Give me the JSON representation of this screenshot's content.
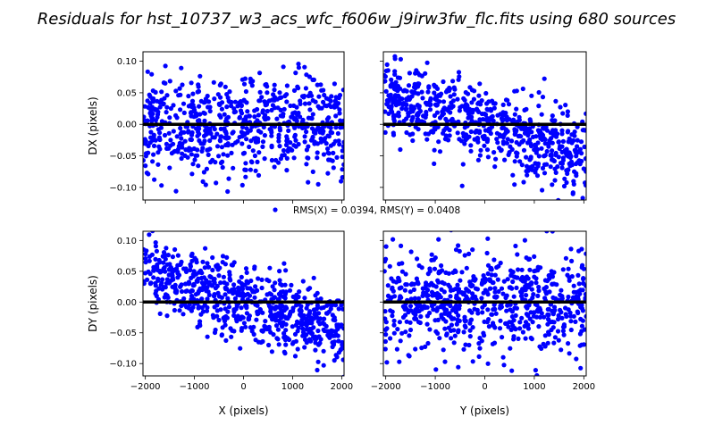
{
  "chart_data": {
    "type": "scatter",
    "title": "Residuals for hst_10737_w3_acs_wfc_f606w_j9irw3fw_flc.fits using 680 sources",
    "legend": {
      "label": "RMS(X) = 0.0394, RMS(Y) = 0.0408",
      "placement": "center"
    },
    "marker_color": "#0000ff",
    "zero_line_color": "#000000",
    "grid": false,
    "n_points_per_panel": 680,
    "xlim": [
      -2048,
      2048
    ],
    "ylim": [
      -0.12,
      0.115
    ],
    "xticks": [
      -2000,
      -1000,
      0,
      1000,
      2000
    ],
    "xtick_labels": [
      "−2000",
      "−1000",
      "0",
      "1000",
      "2000"
    ],
    "yticks": [
      -0.1,
      -0.05,
      0.0,
      0.05,
      0.1
    ],
    "ytick_labels": [
      "−0.10",
      "−0.05",
      "0.00",
      "0.05",
      "0.10"
    ],
    "panels": [
      {
        "id": "dx-vs-x",
        "ylabel": "DX (pixels)",
        "xlabel": "",
        "show_xticklabels": false,
        "show_yticklabels": true,
        "trend_slope_per_1000px": 0.0,
        "scatter_sd": 0.042,
        "seed": 11
      },
      {
        "id": "dx-vs-y",
        "ylabel": "",
        "xlabel": "",
        "show_xticklabels": false,
        "show_yticklabels": false,
        "trend_slope_per_1000px": -0.025,
        "scatter_sd": 0.03,
        "seed": 23
      },
      {
        "id": "dy-vs-x",
        "ylabel": "DY (pixels)",
        "xlabel": "X (pixels)",
        "show_xticklabels": true,
        "show_yticklabels": true,
        "trend_slope_per_1000px": -0.025,
        "scatter_sd": 0.03,
        "seed": 37
      },
      {
        "id": "dy-vs-y",
        "ylabel": "",
        "xlabel": "Y (pixels)",
        "show_xticklabels": true,
        "show_yticklabels": false,
        "trend_slope_per_1000px": 0.0,
        "scatter_sd": 0.042,
        "seed": 53
      }
    ]
  }
}
